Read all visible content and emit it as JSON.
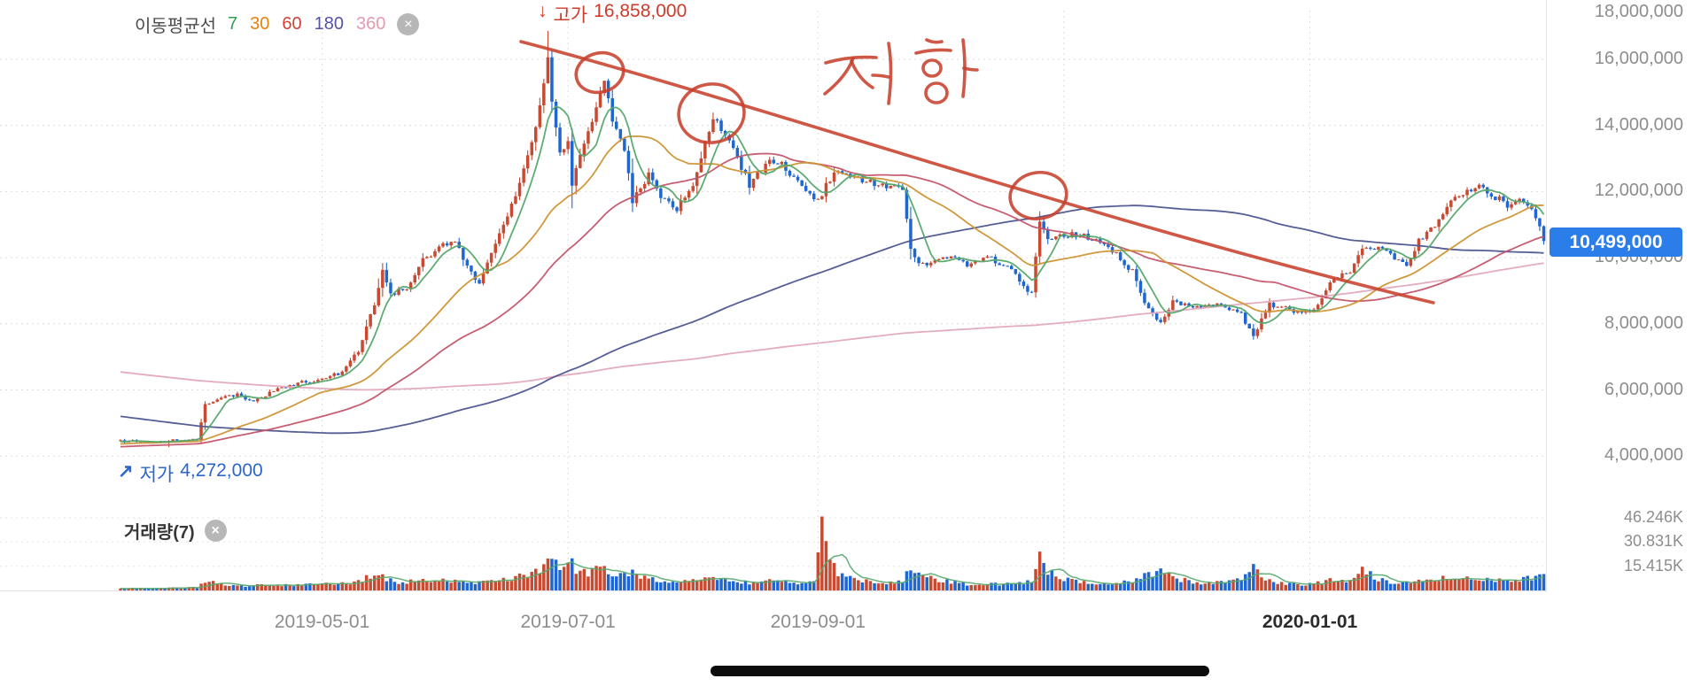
{
  "legend": {
    "title": "이동평균선",
    "periods": [
      {
        "label": "7",
        "color": "#2e9e4f"
      },
      {
        "label": "30",
        "color": "#e8820c"
      },
      {
        "label": "60",
        "color": "#cf4437"
      },
      {
        "label": "180",
        "color": "#5453a5"
      },
      {
        "label": "360",
        "color": "#e59ab0"
      }
    ],
    "close_icon": "×"
  },
  "markers": {
    "high": {
      "arrow": "↓",
      "label": "고가",
      "value": "16,858,000",
      "color": "#cd3b2a"
    },
    "low": {
      "arrow": "↗",
      "label": "저가",
      "value": "4,272,000",
      "color": "#2a66cc"
    }
  },
  "price_badge": {
    "text": "10,499,000",
    "bg": "#2b7de9"
  },
  "y_axis": {
    "labels": [
      {
        "text": "18,000,000",
        "value": 18000000
      },
      {
        "text": "16,000,000",
        "value": 16000000
      },
      {
        "text": "14,000,000",
        "value": 14000000
      },
      {
        "text": "12,000,000",
        "value": 12000000
      },
      {
        "text": "10,000,000",
        "value": 10000000
      },
      {
        "text": "8,000,000",
        "value": 8000000
      },
      {
        "text": "6,000,000",
        "value": 6000000
      },
      {
        "text": "4,000,000",
        "value": 4000000
      }
    ]
  },
  "x_axis": {
    "labels": [
      {
        "text": "2019-05-01",
        "day": 50,
        "bold": false
      },
      {
        "text": "2019-07-01",
        "day": 111,
        "bold": false
      },
      {
        "text": "2019-09-01",
        "day": 173,
        "bold": false
      },
      {
        "text": "2020-01-01",
        "day": 295,
        "bold": true
      }
    ]
  },
  "volume_panel": {
    "legend": "거래량(7)",
    "close_icon": "×",
    "labels": [
      {
        "text": "46.246K",
        "value": 46246
      },
      {
        "text": "30.831K",
        "value": 30831
      },
      {
        "text": "15.415K",
        "value": 15415
      }
    ]
  },
  "annotation": {
    "text": "저항",
    "color": "#c7402c"
  },
  "chart_data": {
    "type": "candlestick",
    "high": 16858000,
    "low": 4272000,
    "last": 10499000,
    "days": 354,
    "candle_up_color": "#c84a31",
    "candle_down_color": "#1f66d0",
    "volume_ma_color": "#55a86b",
    "ma_lines": [
      {
        "period": 360,
        "color": "#e2a9bc"
      },
      {
        "period": 180,
        "color": "#4d5590"
      },
      {
        "period": 60,
        "color": "#c4556a"
      },
      {
        "period": 30,
        "color": "#cf9433"
      },
      {
        "period": 7,
        "color": "#55a86b"
      }
    ],
    "y_gridlines": [
      16000000,
      14000000,
      12000000,
      10000000,
      8000000,
      6000000,
      4000000
    ],
    "v_gridline_days": [
      50,
      111,
      173,
      234,
      295
    ],
    "close_anchors": [
      [
        0,
        4450000
      ],
      [
        8,
        4430000
      ],
      [
        14,
        4480000
      ],
      [
        19,
        4520000
      ],
      [
        21,
        5600000
      ],
      [
        25,
        5750000
      ],
      [
        29,
        5880000
      ],
      [
        33,
        5650000
      ],
      [
        40,
        6100000
      ],
      [
        46,
        6250000
      ],
      [
        50,
        6300000
      ],
      [
        55,
        6550000
      ],
      [
        59,
        7200000
      ],
      [
        63,
        8600000
      ],
      [
        65,
        9600000
      ],
      [
        67,
        8900000
      ],
      [
        71,
        9100000
      ],
      [
        75,
        9900000
      ],
      [
        79,
        10300000
      ],
      [
        83,
        10500000
      ],
      [
        86,
        9700000
      ],
      [
        89,
        9200000
      ],
      [
        93,
        10400000
      ],
      [
        96,
        11200000
      ],
      [
        101,
        13000000
      ],
      [
        104,
        14600000
      ],
      [
        106,
        16200000
      ],
      [
        107,
        14800000
      ],
      [
        109,
        13200000
      ],
      [
        111,
        13500000
      ],
      [
        112,
        12200000
      ],
      [
        115,
        13400000
      ],
      [
        119,
        14900000
      ],
      [
        120,
        15300000
      ],
      [
        122,
        14200000
      ],
      [
        125,
        13200000
      ],
      [
        127,
        11700000
      ],
      [
        131,
        12500000
      ],
      [
        135,
        11700000
      ],
      [
        138,
        11500000
      ],
      [
        142,
        12100000
      ],
      [
        145,
        13500000
      ],
      [
        147,
        14200000
      ],
      [
        151,
        13600000
      ],
      [
        154,
        12700000
      ],
      [
        156,
        12200000
      ],
      [
        161,
        13000000
      ],
      [
        164,
        12800000
      ],
      [
        167,
        12400000
      ],
      [
        170,
        12100000
      ],
      [
        173,
        11700000
      ],
      [
        177,
        12600000
      ],
      [
        181,
        12400000
      ],
      [
        185,
        12300000
      ],
      [
        190,
        12200000
      ],
      [
        194,
        12100000
      ],
      [
        196,
        10200000
      ],
      [
        198,
        9900000
      ],
      [
        200,
        9700000
      ],
      [
        204,
        10100000
      ],
      [
        210,
        9800000
      ],
      [
        216,
        10000000
      ],
      [
        222,
        9500000
      ],
      [
        226,
        8900000
      ],
      [
        228,
        11000000
      ],
      [
        230,
        10600000
      ],
      [
        235,
        10700000
      ],
      [
        241,
        10600000
      ],
      [
        246,
        10200000
      ],
      [
        251,
        9600000
      ],
      [
        255,
        8400000
      ],
      [
        258,
        8000000
      ],
      [
        261,
        8700000
      ],
      [
        267,
        8500000
      ],
      [
        273,
        8600000
      ],
      [
        278,
        8300000
      ],
      [
        281,
        7600000
      ],
      [
        285,
        8600000
      ],
      [
        291,
        8400000
      ],
      [
        295,
        8400000
      ],
      [
        297,
        8600000
      ],
      [
        301,
        9400000
      ],
      [
        305,
        9500000
      ],
      [
        308,
        10300000
      ],
      [
        311,
        10300000
      ],
      [
        315,
        10100000
      ],
      [
        319,
        9800000
      ],
      [
        322,
        10500000
      ],
      [
        326,
        11000000
      ],
      [
        330,
        11700000
      ],
      [
        334,
        12000000
      ],
      [
        337,
        12100000
      ],
      [
        340,
        11900000
      ],
      [
        344,
        11600000
      ],
      [
        347,
        11800000
      ],
      [
        350,
        11500000
      ],
      [
        352,
        11000000
      ],
      [
        353,
        10499000
      ]
    ],
    "prehistory_anchors": [
      [
        -360,
        9600000
      ],
      [
        -320,
        8600000
      ],
      [
        -280,
        7600000
      ],
      [
        -240,
        7300000
      ],
      [
        -180,
        7200000
      ],
      [
        -130,
        7100000
      ],
      [
        -118,
        5600000
      ],
      [
        -110,
        4400000
      ],
      [
        -95,
        4050000
      ],
      [
        -60,
        4150000
      ],
      [
        -30,
        4250000
      ],
      [
        -10,
        4400000
      ],
      [
        -1,
        4440000
      ]
    ],
    "volume_anchors_k": [
      [
        0,
        1.2
      ],
      [
        10,
        1.5
      ],
      [
        19,
        1.8
      ],
      [
        21,
        6
      ],
      [
        25,
        4
      ],
      [
        30,
        3
      ],
      [
        40,
        3.5
      ],
      [
        50,
        4
      ],
      [
        57,
        5
      ],
      [
        61,
        8
      ],
      [
        65,
        9
      ],
      [
        68,
        5
      ],
      [
        73,
        6
      ],
      [
        79,
        7
      ],
      [
        83,
        6
      ],
      [
        87,
        5
      ],
      [
        90,
        5
      ],
      [
        96,
        7
      ],
      [
        101,
        10
      ],
      [
        104,
        13
      ],
      [
        106,
        20
      ],
      [
        107,
        26
      ],
      [
        109,
        17
      ],
      [
        111,
        22
      ],
      [
        113,
        14
      ],
      [
        116,
        10
      ],
      [
        119,
        15
      ],
      [
        120,
        13
      ],
      [
        123,
        11
      ],
      [
        125,
        9
      ],
      [
        127,
        12
      ],
      [
        131,
        7
      ],
      [
        135,
        6
      ],
      [
        139,
        5
      ],
      [
        142,
        6
      ],
      [
        145,
        8
      ],
      [
        147,
        9
      ],
      [
        151,
        6
      ],
      [
        156,
        5
      ],
      [
        161,
        6
      ],
      [
        167,
        5
      ],
      [
        170,
        4
      ],
      [
        172,
        6
      ],
      [
        174,
        46
      ],
      [
        175,
        28
      ],
      [
        176,
        19
      ],
      [
        178,
        11
      ],
      [
        181,
        8
      ],
      [
        185,
        6
      ],
      [
        190,
        5
      ],
      [
        194,
        6
      ],
      [
        196,
        17
      ],
      [
        198,
        11
      ],
      [
        200,
        8
      ],
      [
        204,
        6
      ],
      [
        210,
        4
      ],
      [
        216,
        4
      ],
      [
        222,
        4
      ],
      [
        226,
        6
      ],
      [
        228,
        30
      ],
      [
        229,
        21
      ],
      [
        230,
        12
      ],
      [
        233,
        8
      ],
      [
        235,
        7
      ],
      [
        241,
        5
      ],
      [
        246,
        5
      ],
      [
        251,
        6
      ],
      [
        255,
        10
      ],
      [
        258,
        12
      ],
      [
        261,
        8
      ],
      [
        267,
        5
      ],
      [
        273,
        5
      ],
      [
        278,
        8
      ],
      [
        281,
        14
      ],
      [
        283,
        9
      ],
      [
        285,
        6
      ],
      [
        291,
        4
      ],
      [
        295,
        4
      ],
      [
        298,
        5
      ],
      [
        301,
        7
      ],
      [
        305,
        6
      ],
      [
        308,
        16
      ],
      [
        310,
        10
      ],
      [
        312,
        7
      ],
      [
        315,
        5
      ],
      [
        319,
        5
      ],
      [
        322,
        7
      ],
      [
        326,
        7
      ],
      [
        330,
        8
      ],
      [
        334,
        9
      ],
      [
        337,
        8
      ],
      [
        340,
        7
      ],
      [
        344,
        6
      ],
      [
        348,
        7
      ],
      [
        351,
        9
      ],
      [
        353,
        12
      ]
    ]
  }
}
